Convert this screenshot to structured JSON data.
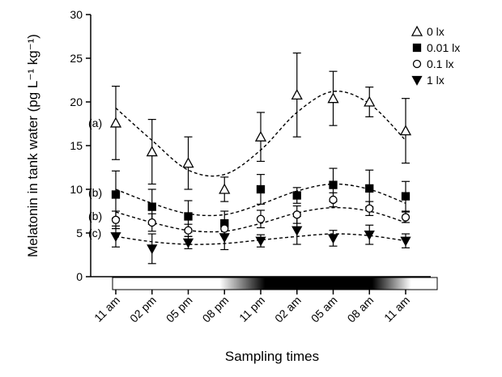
{
  "chart_data": {
    "type": "scatter",
    "xlabel": "Sampling times",
    "ylabel": "Melatonin in tank water (pg L⁻¹ kg⁻¹)",
    "ylim": [
      0,
      30
    ],
    "yticks": [
      0,
      5,
      10,
      15,
      20,
      25,
      30
    ],
    "categories": [
      "11 am",
      "02 pm",
      "05 pm",
      "08 pm",
      "11 pm",
      "02 am",
      "05 am",
      "08 am",
      "11 am"
    ],
    "photoperiod_bar": "light-dark gradient under the x axis: light during the day, dark at night (roughly 08 pm to 08 am)",
    "legend_position": "top-right",
    "series": [
      {
        "name": "0 lx",
        "marker": "triangle-up-open",
        "group_label": "(a)",
        "values": [
          17.6,
          14.3,
          13.0,
          10.0,
          16.0,
          20.8,
          20.4,
          20.0,
          16.7
        ],
        "errors": [
          4.2,
          3.7,
          3.0,
          1.4,
          2.8,
          4.8,
          3.1,
          1.7,
          3.7
        ],
        "fit": [
          19.3,
          15.6,
          12.2,
          11.7,
          14.5,
          18.8,
          21.2,
          19.8,
          15.6
        ]
      },
      {
        "name": "0.01 lx",
        "marker": "square-filled",
        "group_label": "(b)",
        "values": [
          9.4,
          8.0,
          6.9,
          6.1,
          10.0,
          9.3,
          10.5,
          10.1,
          9.2
        ],
        "errors": [
          2.7,
          2.0,
          1.8,
          1.4,
          1.7,
          0.9,
          1.9,
          2.1,
          1.7
        ],
        "fit": [
          10.0,
          8.4,
          7.2,
          7.1,
          8.3,
          9.8,
          10.6,
          10.0,
          8.4
        ]
      },
      {
        "name": "0.1 lx",
        "marker": "circle-open",
        "group_label": "(b)",
        "values": [
          6.5,
          6.2,
          5.3,
          5.5,
          6.6,
          7.1,
          8.8,
          7.8,
          6.8
        ],
        "errors": [
          1.0,
          1.0,
          0.7,
          0.6,
          1.0,
          1.0,
          0.8,
          0.8,
          0.6
        ],
        "fit": [
          7.4,
          6.2,
          5.3,
          5.2,
          6.1,
          7.3,
          7.9,
          7.5,
          6.2
        ]
      },
      {
        "name": "1 lx",
        "marker": "triangle-down-filled",
        "group_label": "(c)",
        "values": [
          4.6,
          3.2,
          3.9,
          4.5,
          4.1,
          5.3,
          4.4,
          4.8,
          4.1
        ],
        "errors": [
          1.2,
          1.7,
          0.7,
          1.4,
          0.7,
          1.6,
          0.9,
          1.1,
          0.8
        ],
        "fit": [
          4.6,
          4.0,
          3.7,
          3.8,
          4.2,
          4.6,
          4.9,
          4.7,
          4.1
        ]
      }
    ]
  }
}
